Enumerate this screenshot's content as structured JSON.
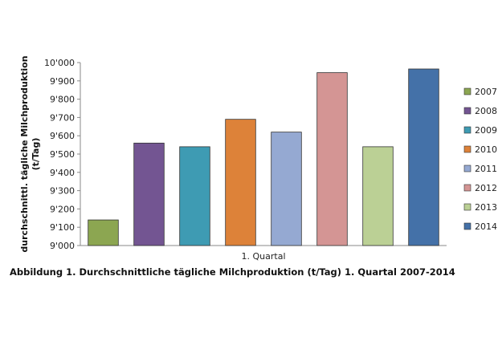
{
  "chart_data": {
    "type": "bar",
    "title": "",
    "xlabel": "1. Quartal",
    "ylabel_line1": "durchschnittl. tägliche  Milchproduktion",
    "ylabel_line2": "(t/Tag)",
    "ylim": [
      9000,
      10000
    ],
    "ytick_step": 100,
    "ytick_labels": [
      "9'000",
      "9'100",
      "9'200",
      "9'300",
      "9'400",
      "9'500",
      "9'600",
      "9'700",
      "9'800",
      "9'900",
      "10'000"
    ],
    "grid": false,
    "legend_position": "right",
    "series": [
      {
        "name": "2007",
        "value": 9140,
        "color": "#8CA651"
      },
      {
        "name": "2008",
        "value": 9560,
        "color": "#735592"
      },
      {
        "name": "2009",
        "value": 9540,
        "color": "#3E9BB3"
      },
      {
        "name": "2010",
        "value": 9690,
        "color": "#DD8239"
      },
      {
        "name": "2011",
        "value": 9620,
        "color": "#95A9D2"
      },
      {
        "name": "2012",
        "value": 9945,
        "color": "#D49594"
      },
      {
        "name": "2013",
        "value": 9540,
        "color": "#BBD095"
      },
      {
        "name": "2014",
        "value": 9965,
        "color": "#4471A8"
      }
    ]
  },
  "caption": "Abbildung 1. Durchschnittliche tägliche Milchproduktion (t/Tag) 1. Quartal 2007-2014"
}
